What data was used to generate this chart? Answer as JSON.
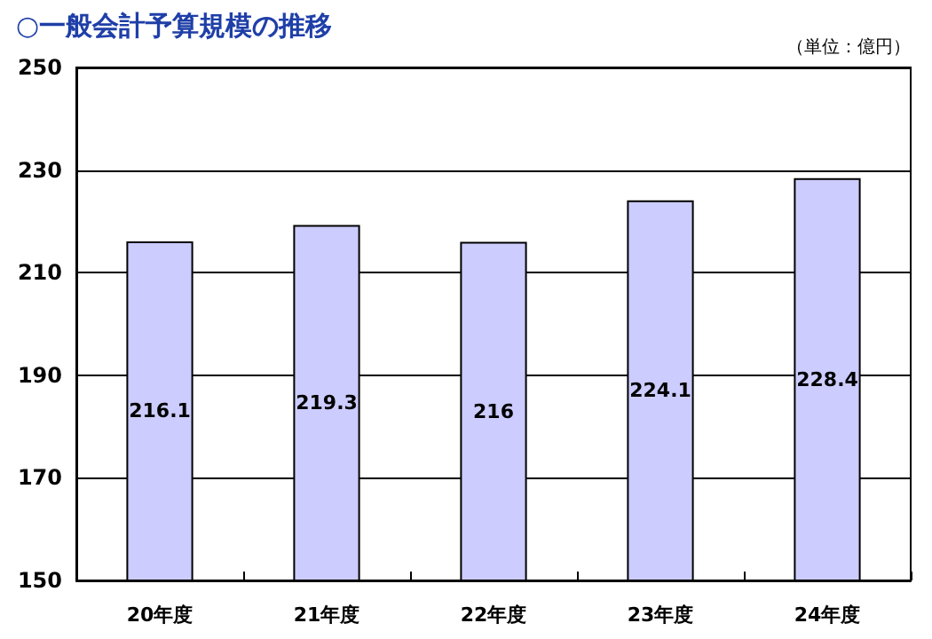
{
  "chart_data": {
    "type": "bar",
    "title": "○一般会計予算規模の推移",
    "annotations": [
      "（単位：億円）"
    ],
    "categories": [
      "20年度",
      "21年度",
      "22年度",
      "23年度",
      "24年度"
    ],
    "values": [
      216.1,
      219.3,
      216,
      224.1,
      228.4
    ],
    "color": "#ccccff",
    "ylim": [
      150,
      250
    ],
    "yticks": [
      150,
      170,
      190,
      210,
      230,
      250
    ],
    "grid": "y",
    "data_labels": true
  }
}
